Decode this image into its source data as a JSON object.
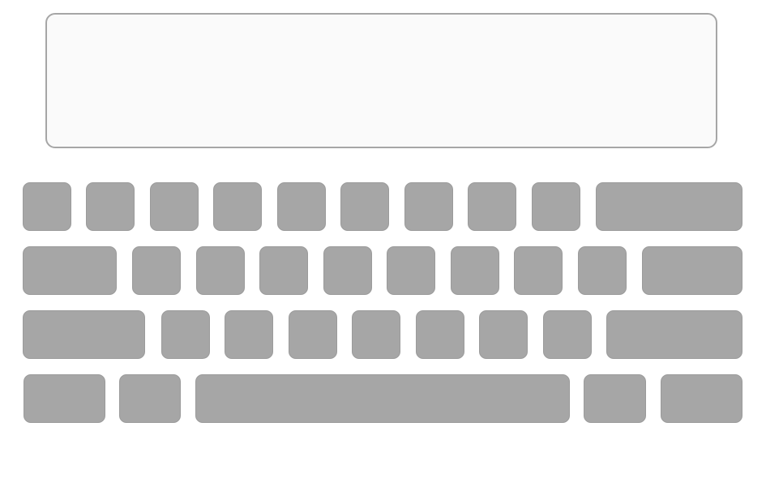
{
  "display": {
    "text": ""
  },
  "keyboard": {
    "rows": [
      [
        "",
        "",
        "",
        "",
        "",
        "",
        "",
        "",
        "",
        ""
      ],
      [
        "",
        "",
        "",
        "",
        "",
        "",
        "",
        "",
        "",
        ""
      ],
      [
        "",
        "",
        "",
        "",
        "",
        "",
        "",
        "",
        ""
      ],
      [
        "",
        "",
        "",
        "",
        ""
      ]
    ]
  },
  "colors": {
    "key_fill": "#a6a6a6",
    "display_fill": "#fafafa",
    "display_border": "#a6a6a6"
  }
}
